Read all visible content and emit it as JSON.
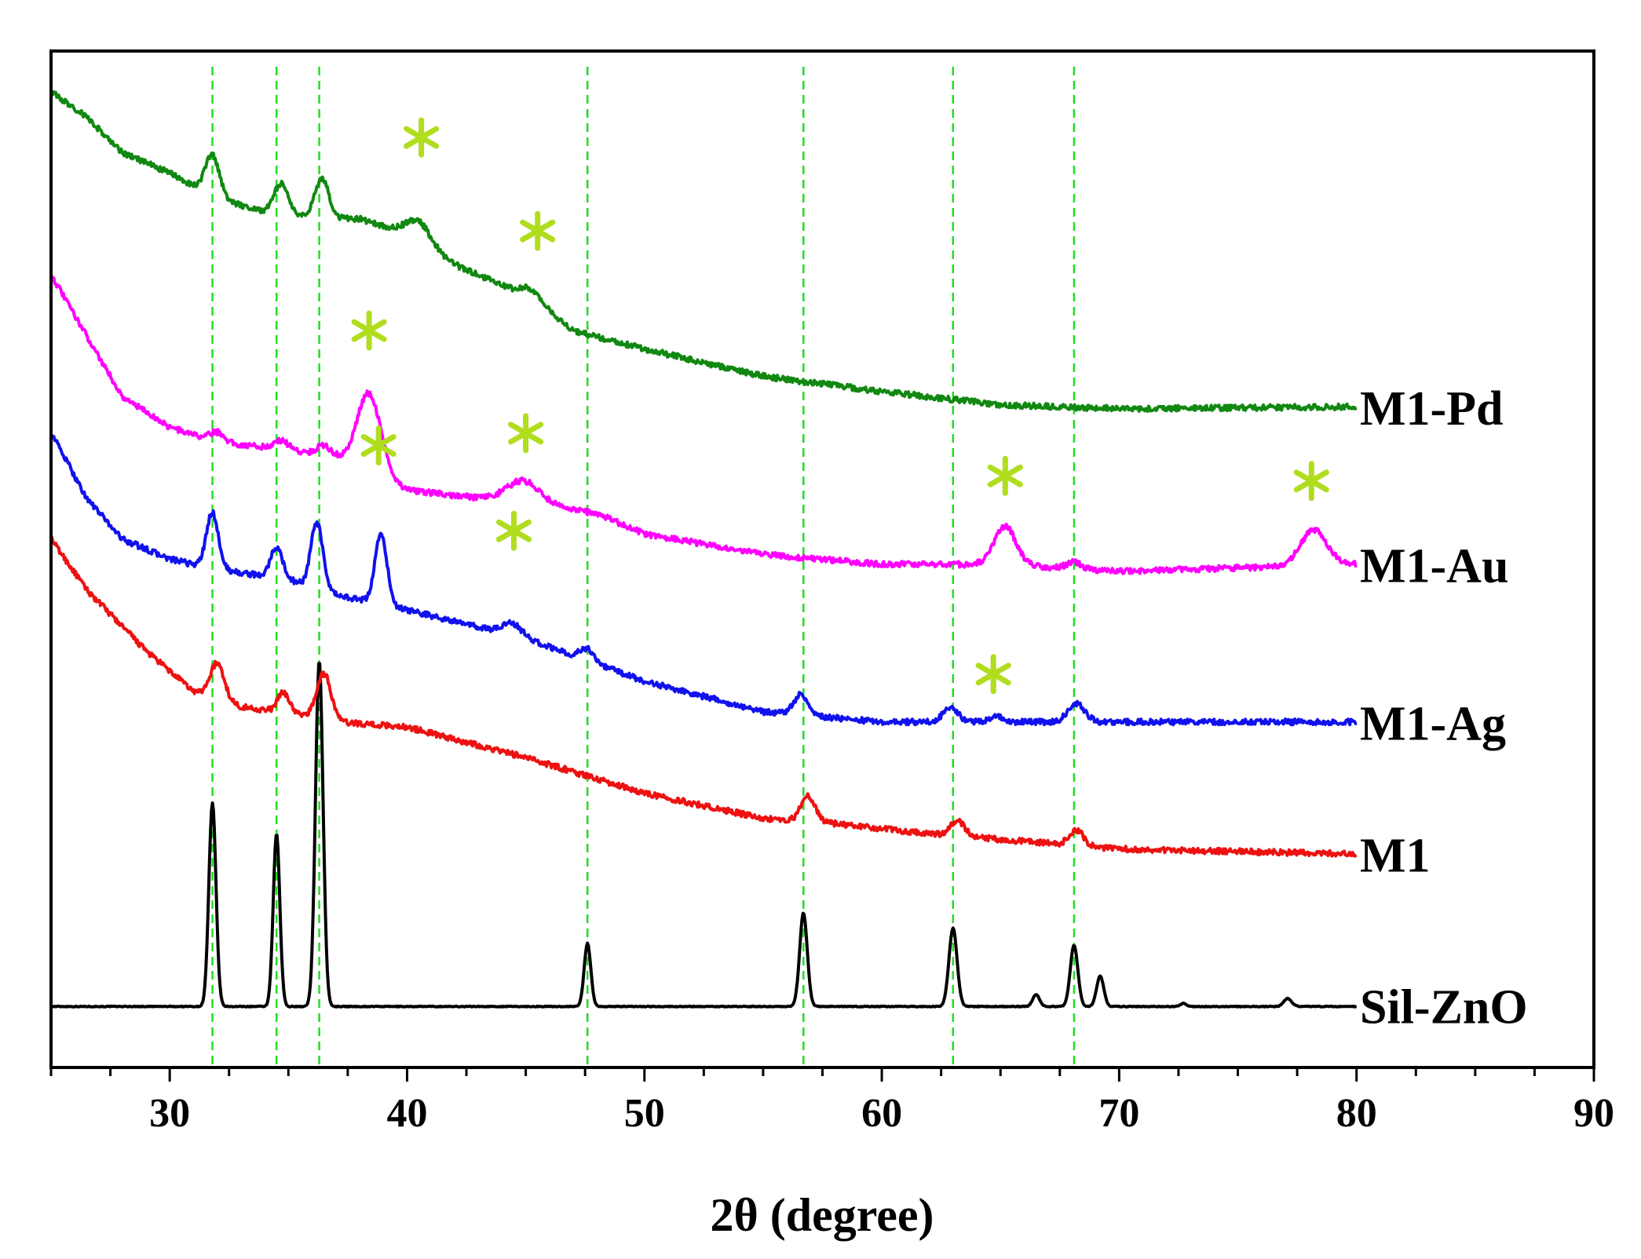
{
  "chart_data": {
    "type": "line",
    "title": "",
    "xlabel": "2θ (degree)",
    "ylabel": "",
    "xlim": [
      25,
      90
    ],
    "x_ticks": [
      30,
      40,
      50,
      60,
      70,
      80,
      90
    ],
    "y_ticks_shown": false,
    "grid": false,
    "legend": "inline labels at right end of each trace",
    "reference_lines": {
      "style": "green dashed vertical",
      "color": "#22dd22",
      "x": [
        31.8,
        34.5,
        36.3,
        47.6,
        56.7,
        63.0,
        68.1
      ]
    },
    "marker_color": "#b0dd1e",
    "series": [
      {
        "name": "Sil-ZnO",
        "color": "#000000",
        "baseline": [
          [
            25,
            2
          ],
          [
            80,
            2
          ]
        ],
        "peaks": [
          [
            31.8,
            2.0,
            0.15
          ],
          [
            34.5,
            1.7,
            0.14
          ],
          [
            36.3,
            3.4,
            0.16
          ],
          [
            47.6,
            0.62,
            0.14
          ],
          [
            56.7,
            0.92,
            0.16
          ],
          [
            63.0,
            0.77,
            0.17
          ],
          [
            66.5,
            0.12,
            0.14
          ],
          [
            68.1,
            0.6,
            0.16
          ],
          [
            69.2,
            0.3,
            0.15
          ],
          [
            72.7,
            0.03,
            0.12
          ],
          [
            77.1,
            0.08,
            0.16
          ]
        ],
        "stars_at": []
      },
      {
        "name": "M1",
        "color": "#ee1111",
        "baseline": [
          [
            25,
            6.6
          ],
          [
            26.5,
            6.1
          ],
          [
            29,
            5.5
          ],
          [
            31,
            5.1
          ],
          [
            33,
            4.95
          ],
          [
            36,
            4.85
          ],
          [
            37,
            4.8
          ],
          [
            40,
            4.75
          ],
          [
            45,
            4.45
          ],
          [
            50,
            4.1
          ],
          [
            55,
            3.85
          ],
          [
            58,
            3.8
          ],
          [
            62,
            3.7
          ],
          [
            70,
            3.55
          ],
          [
            80,
            3.5
          ]
        ],
        "peaks": [
          [
            32.0,
            0.35,
            0.3
          ],
          [
            34.8,
            0.2,
            0.25
          ],
          [
            36.5,
            0.45,
            0.3
          ],
          [
            56.9,
            0.25,
            0.3
          ],
          [
            63.2,
            0.15,
            0.3
          ],
          [
            68.2,
            0.15,
            0.3
          ]
        ],
        "stars_at": []
      },
      {
        "name": "M1-Ag",
        "color": "#1111ee",
        "baseline": [
          [
            25,
            7.65
          ],
          [
            26.5,
            7.0
          ],
          [
            28,
            6.6
          ],
          [
            30,
            6.4
          ],
          [
            32,
            6.3
          ],
          [
            35,
            6.2
          ],
          [
            37,
            6.05
          ],
          [
            40,
            5.9
          ],
          [
            45,
            5.62
          ],
          [
            50,
            5.2
          ],
          [
            55,
            4.9
          ],
          [
            60,
            4.8
          ],
          [
            70,
            4.8
          ],
          [
            80,
            4.8
          ]
        ],
        "peaks": [
          [
            31.8,
            0.55,
            0.25
          ],
          [
            34.5,
            0.3,
            0.25
          ],
          [
            36.2,
            0.65,
            0.25
          ],
          [
            38.9,
            0.7,
            0.25
          ],
          [
            44.4,
            0.12,
            0.4
          ],
          [
            47.6,
            0.12,
            0.3
          ],
          [
            56.6,
            0.2,
            0.3
          ],
          [
            62.9,
            0.15,
            0.3
          ],
          [
            64.8,
            0.05,
            0.3
          ],
          [
            68.2,
            0.18,
            0.35
          ]
        ],
        "stars_at": [
          [
            38.8,
            7.52
          ],
          [
            44.5,
            6.68
          ],
          [
            64.7,
            5.27
          ]
        ]
      },
      {
        "name": "M1-Au",
        "color": "#ff00ff",
        "baseline": [
          [
            25,
            9.2
          ],
          [
            26.5,
            8.6
          ],
          [
            28,
            8.0
          ],
          [
            30,
            7.7
          ],
          [
            32,
            7.55
          ],
          [
            35,
            7.48
          ],
          [
            37,
            7.4
          ],
          [
            40,
            7.08
          ],
          [
            45,
            6.95
          ],
          [
            48,
            6.85
          ],
          [
            50,
            6.65
          ],
          [
            55,
            6.45
          ],
          [
            60,
            6.35
          ],
          [
            65,
            6.35
          ],
          [
            70,
            6.28
          ],
          [
            80,
            6.35
          ]
        ],
        "peaks": [
          [
            32.0,
            0.1,
            0.3
          ],
          [
            34.7,
            0.08,
            0.3
          ],
          [
            36.5,
            0.1,
            0.3
          ],
          [
            38.4,
            0.78,
            0.5
          ],
          [
            44.9,
            0.22,
            0.7
          ],
          [
            65.2,
            0.38,
            0.45
          ],
          [
            68.1,
            0.07,
            0.3
          ],
          [
            78.2,
            0.35,
            0.55
          ]
        ],
        "stars_at": [
          [
            38.4,
            8.65
          ],
          [
            45.0,
            7.64
          ],
          [
            65.2,
            7.22
          ],
          [
            78.1,
            7.17
          ]
        ]
      },
      {
        "name": "M1-Pd",
        "color": "#118811",
        "baseline": [
          [
            25,
            11.0
          ],
          [
            26.5,
            10.75
          ],
          [
            28,
            10.4
          ],
          [
            30,
            10.2
          ],
          [
            32,
            9.95
          ],
          [
            34,
            9.82
          ],
          [
            36,
            9.75
          ],
          [
            38,
            9.75
          ],
          [
            40,
            9.6
          ],
          [
            42,
            9.3
          ],
          [
            45,
            9.0
          ],
          [
            47,
            8.65
          ],
          [
            50,
            8.47
          ],
          [
            55,
            8.2
          ],
          [
            60,
            8.05
          ],
          [
            65,
            7.92
          ],
          [
            70,
            7.88
          ],
          [
            80,
            7.9
          ]
        ],
        "peaks": [
          [
            31.8,
            0.4,
            0.3
          ],
          [
            34.7,
            0.3,
            0.3
          ],
          [
            36.4,
            0.4,
            0.3
          ],
          [
            40.5,
            0.2,
            0.5
          ],
          [
            45.3,
            0.1,
            0.4
          ]
        ],
        "stars_at": [
          [
            40.6,
            10.55
          ],
          [
            45.5,
            9.63
          ]
        ]
      }
    ]
  }
}
